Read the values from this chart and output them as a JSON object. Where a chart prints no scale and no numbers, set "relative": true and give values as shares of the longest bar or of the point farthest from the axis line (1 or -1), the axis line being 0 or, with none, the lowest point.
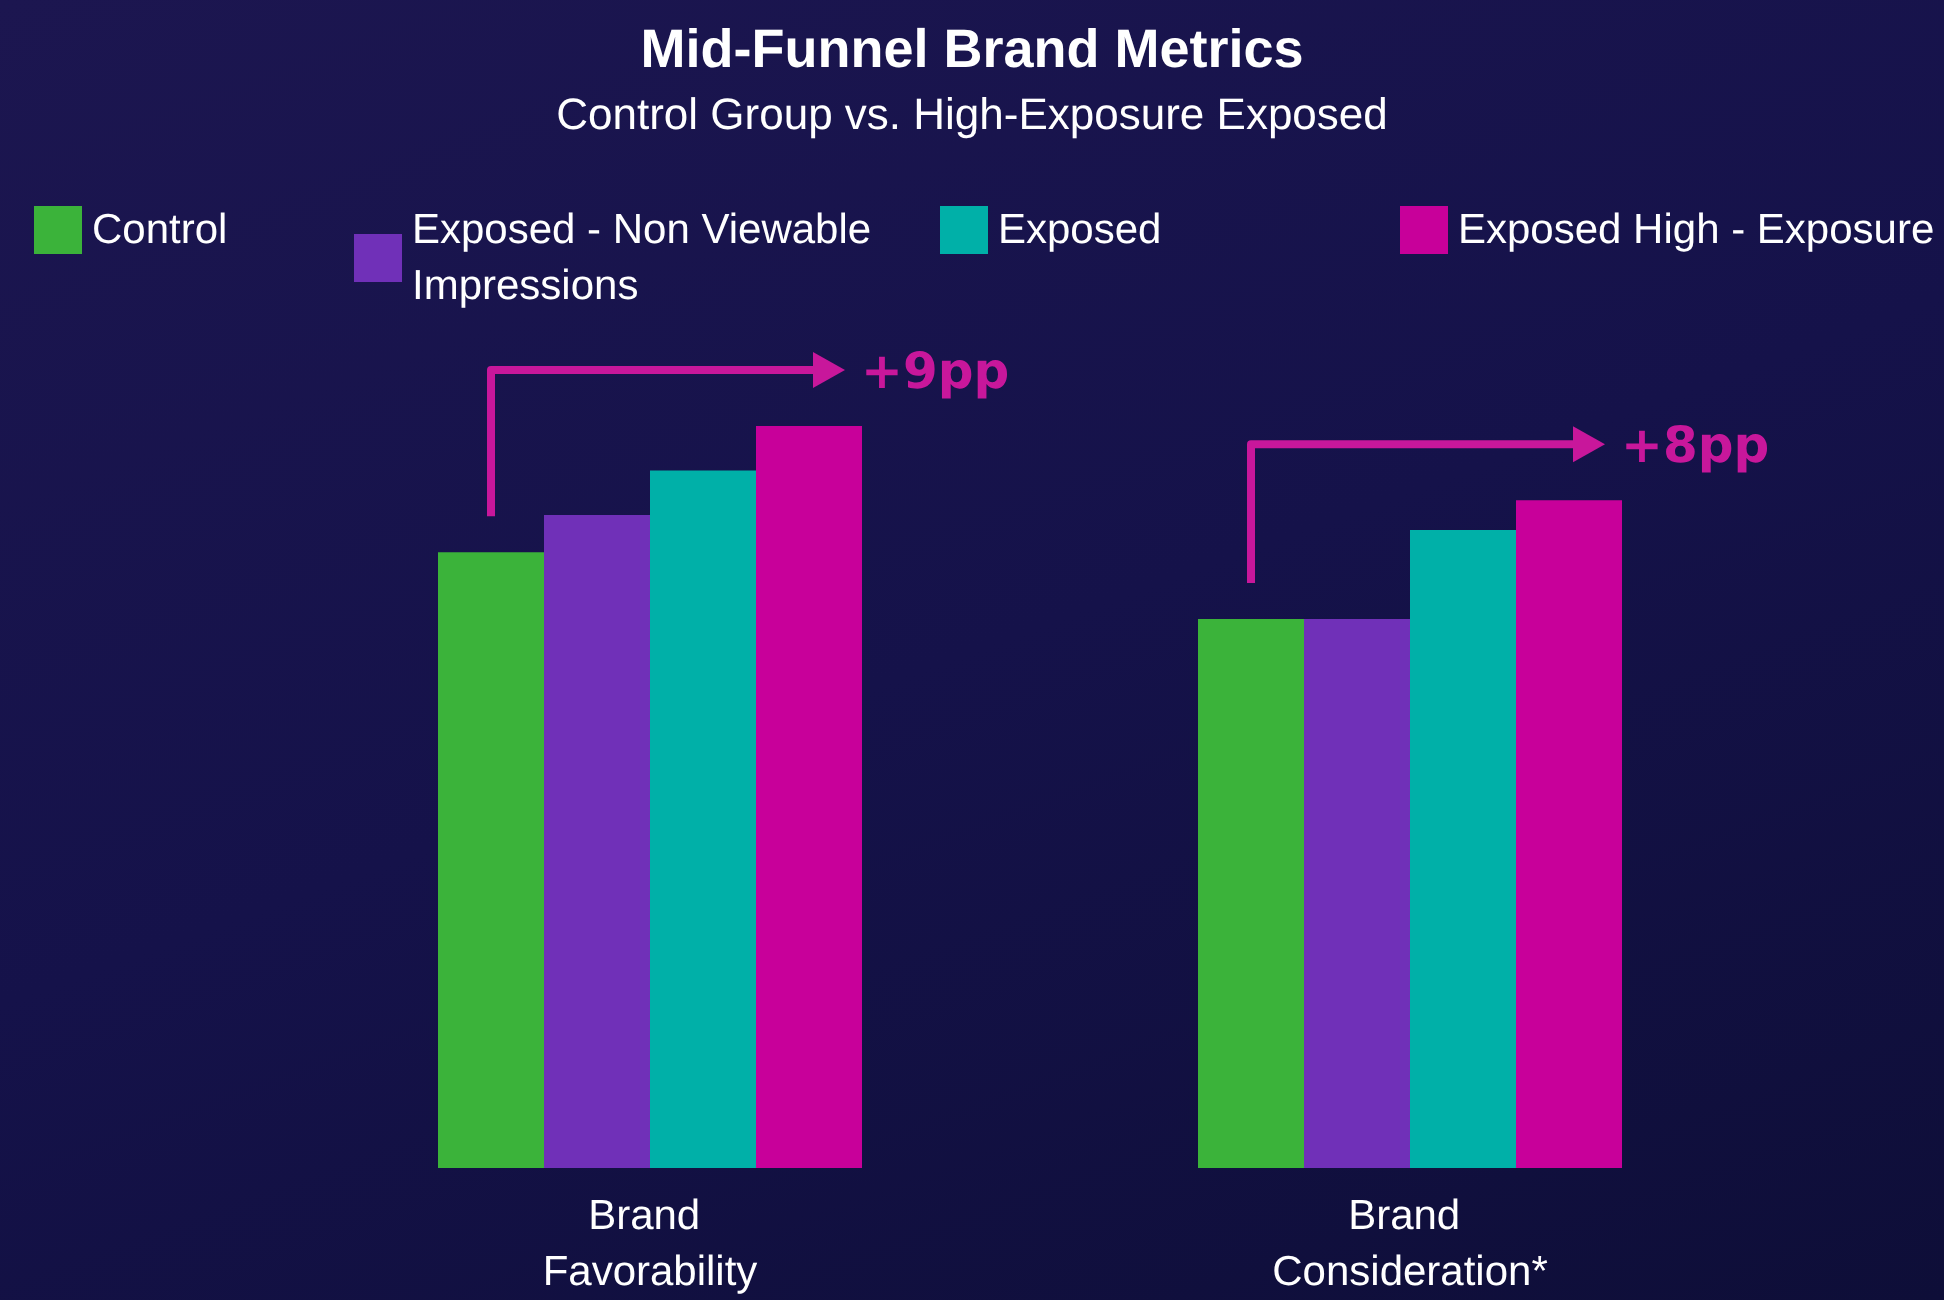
{
  "chart_data": {
    "type": "bar",
    "title": "Mid-Funnel Brand Metrics",
    "subtitle": "Control Group vs. High-Exposure Exposed",
    "categories": [
      "Brand Favorability",
      "Brand Consideration*"
    ],
    "relative": true,
    "legend": "top",
    "grid": false,
    "series": [
      {
        "name": "Control",
        "color": "#3bb33a",
        "values": [
          0.83,
          0.74
        ]
      },
      {
        "name": "Exposed - Non Viewable Impressions",
        "color": "#7030b8",
        "values": [
          0.88,
          0.74
        ]
      },
      {
        "name": "Exposed",
        "color": "#00b0a8",
        "values": [
          0.94,
          0.86
        ]
      },
      {
        "name": "Exposed High - Exposure",
        "color": "#c8009a",
        "values": [
          1,
          0.9
        ]
      }
    ],
    "annotations": [
      "+9pp",
      "+8pp"
    ]
  }
}
